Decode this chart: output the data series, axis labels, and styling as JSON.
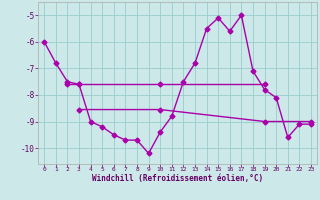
{
  "title": "",
  "xlabel": "Windchill (Refroidissement éolien,°C)",
  "background_color": "#cce8e8",
  "grid_color": "#99cccc",
  "line_color": "#aa00aa",
  "x_values": [
    0,
    1,
    2,
    3,
    4,
    5,
    6,
    7,
    8,
    9,
    10,
    11,
    12,
    13,
    14,
    15,
    16,
    17,
    18,
    19,
    20,
    21,
    22,
    23
  ],
  "series1": [
    -6.0,
    -6.8,
    -7.5,
    -7.6,
    -9.0,
    -9.2,
    -9.5,
    -9.7,
    -9.7,
    -10.2,
    -9.4,
    -8.8,
    -7.5,
    -6.8,
    -5.5,
    -5.1,
    -5.6,
    -5.0,
    -7.1,
    -7.8,
    -8.1,
    -9.6,
    -9.1,
    -9.1
  ],
  "series2_x": [
    2,
    3,
    10,
    19
  ],
  "series2_y": [
    -7.6,
    -7.6,
    -7.6,
    -7.6
  ],
  "series3_x": [
    3,
    10,
    19,
    23
  ],
  "series3_y": [
    -8.55,
    -8.55,
    -9.0,
    -9.0
  ],
  "ylim": [
    -10.6,
    -4.5
  ],
  "xlim": [
    -0.5,
    23.5
  ],
  "yticks": [
    -10,
    -9,
    -8,
    -7,
    -6,
    -5
  ],
  "xticks": [
    0,
    1,
    2,
    3,
    4,
    5,
    6,
    7,
    8,
    9,
    10,
    11,
    12,
    13,
    14,
    15,
    16,
    17,
    18,
    19,
    20,
    21,
    22,
    23
  ],
  "marker_size": 2.5,
  "line_width": 1.0,
  "tick_label_color": "#660066",
  "xlabel_color": "#660066"
}
